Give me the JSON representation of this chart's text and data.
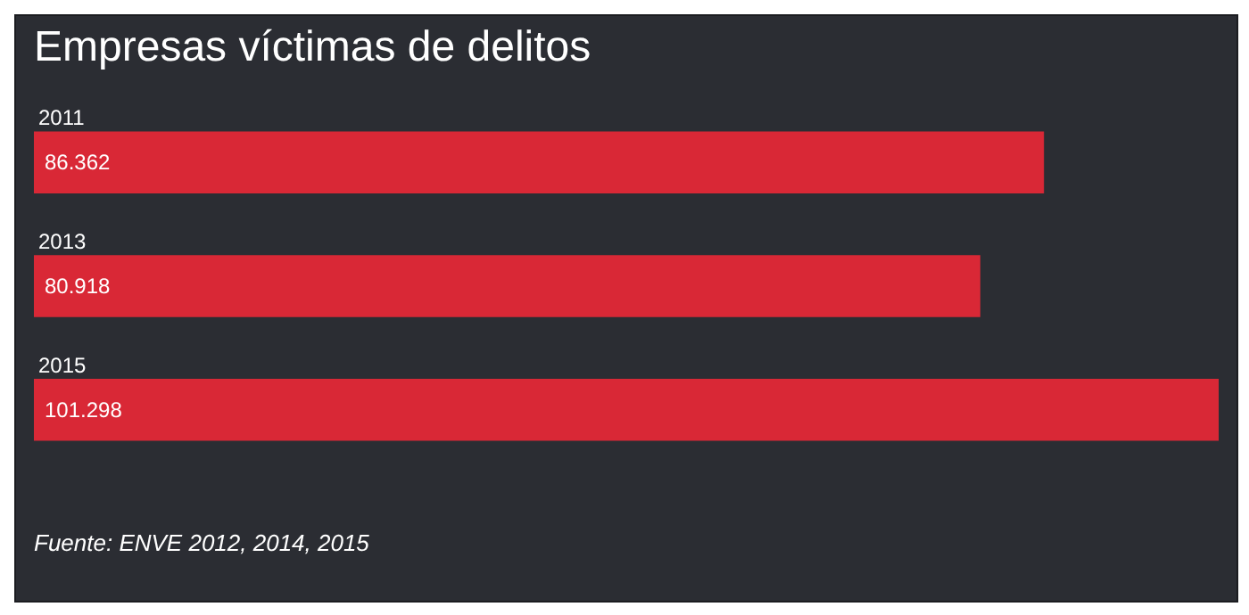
{
  "chart_data": {
    "type": "bar",
    "orientation": "horizontal",
    "title": "Empresas víctimas de delitos",
    "categories": [
      "2011",
      "2013",
      "2015"
    ],
    "values": [
      86362,
      80918,
      101298
    ],
    "color": "#d92836",
    "value_labels": [
      "86.362",
      "80.918",
      "101.298"
    ],
    "annotations": [
      "Fuente: ENVE 2012, 2014, 2015"
    ]
  }
}
